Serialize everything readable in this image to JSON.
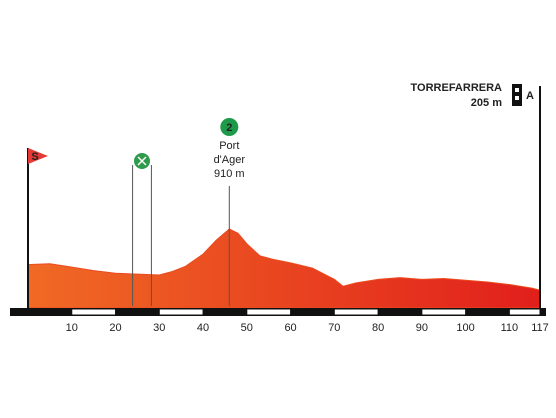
{
  "chart_data": {
    "type": "area",
    "x": [
      0,
      5,
      10,
      15,
      20,
      25,
      30,
      33,
      36,
      40,
      43,
      46,
      48,
      50,
      53,
      56,
      60,
      65,
      70,
      72,
      75,
      80,
      85,
      90,
      95,
      100,
      105,
      110,
      115,
      117
    ],
    "series": [
      {
        "color": "#ec4a1e",
        "values": [
          500,
          510,
          470,
          430,
          400,
          390,
          380,
          420,
          480,
          620,
          780,
          910,
          860,
          740,
          600,
          560,
          520,
          460,
          330,
          250,
          290,
          330,
          350,
          330,
          340,
          320,
          300,
          270,
          230,
          205
        ]
      }
    ],
    "xlim": [
      0,
      117
    ],
    "xticks": [
      10,
      20,
      30,
      40,
      50,
      60,
      70,
      80,
      90,
      100,
      110,
      117
    ],
    "ylim": [
      0,
      3200
    ],
    "start": {
      "label": "S",
      "km": 0
    },
    "feed": {
      "km": [
        23.9,
        28.2
      ]
    },
    "climb": {
      "category": "2",
      "name_lines": [
        "Port",
        "d'Ager"
      ],
      "elevation": "910 m",
      "km": 46
    },
    "finish": {
      "name": "TORREFARRERA",
      "elevation": "205 m",
      "label": "A",
      "km": 117
    }
  }
}
